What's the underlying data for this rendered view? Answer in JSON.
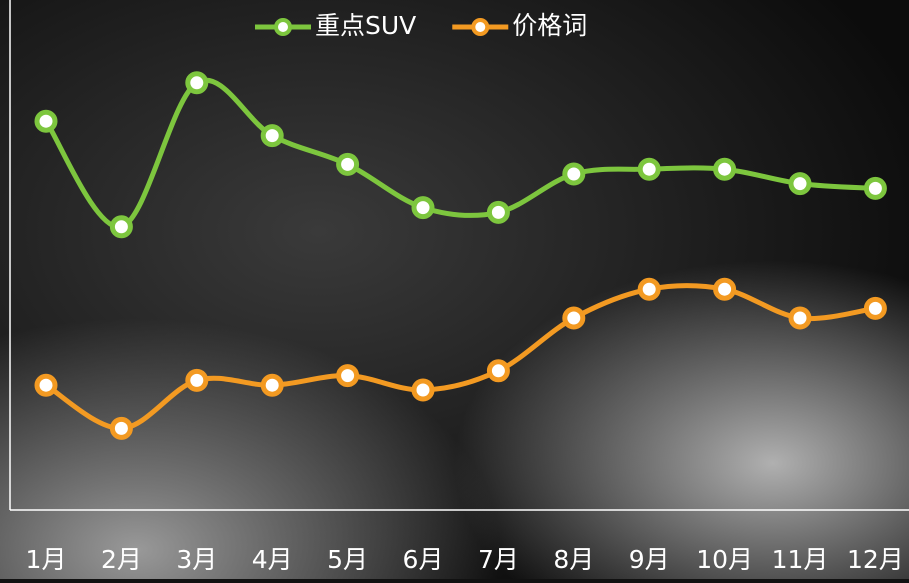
{
  "chart_data": {
    "type": "line",
    "categories": [
      "1月",
      "2月",
      "3月",
      "4月",
      "5月",
      "6月",
      "7月",
      "8月",
      "9月",
      "10月",
      "11月",
      "12月"
    ],
    "series": [
      {
        "name": "重点SUV",
        "color": "#7dc63e",
        "values": [
          81,
          59,
          89,
          78,
          72,
          63,
          62,
          70,
          71,
          71,
          68,
          67
        ]
      },
      {
        "name": "价格词",
        "color": "#f39a22",
        "values": [
          26,
          17,
          27,
          26,
          28,
          25,
          29,
          40,
          46,
          46,
          40,
          42
        ]
      }
    ],
    "ylim": [
      0,
      100
    ],
    "legend": "top"
  }
}
